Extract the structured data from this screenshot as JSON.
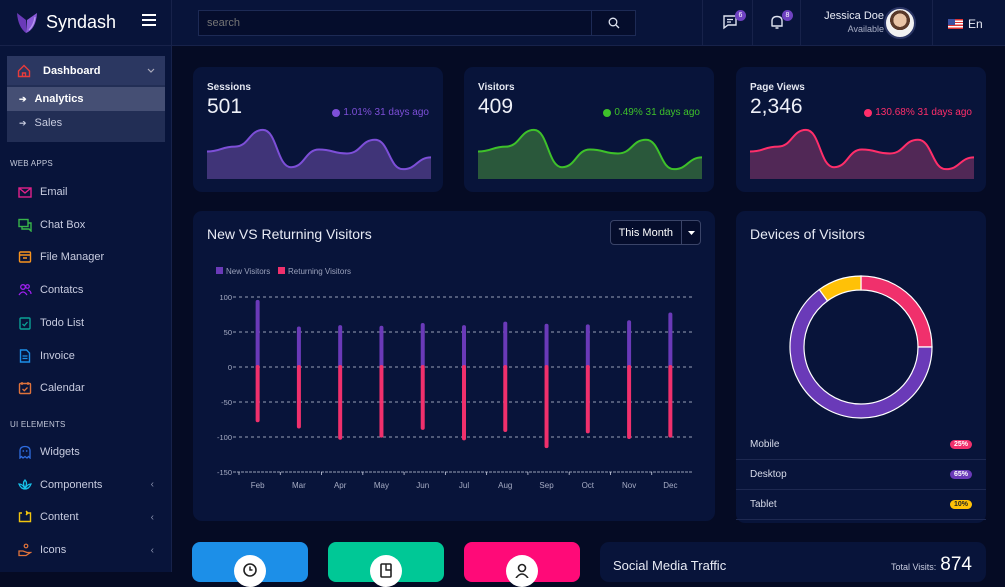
{
  "brand": {
    "name": "Syndash",
    "logo_icon": "leaf-logo"
  },
  "topbar": {
    "search_placeholder": "search",
    "messages_badge": "6",
    "notifications_badge": "8",
    "user_name": "Jessica Doe",
    "user_status": "Available",
    "language": "En"
  },
  "sidebar": {
    "dashboard": {
      "label": "Dashboard",
      "children": [
        {
          "label": "Analytics"
        },
        {
          "label": "Sales"
        }
      ]
    },
    "web_apps_label": "WEB APPS",
    "web_apps": [
      {
        "label": "Email",
        "icon": "mail-icon",
        "color": "#e0218a"
      },
      {
        "label": "Chat Box",
        "icon": "chat-icon",
        "color": "#38b54a"
      },
      {
        "label": "File Manager",
        "icon": "archive-icon",
        "color": "#f7931e"
      },
      {
        "label": "Contatcs",
        "icon": "users-icon",
        "color": "#a020f0"
      },
      {
        "label": "Todo List",
        "icon": "checklist-icon",
        "color": "#0aa195"
      },
      {
        "label": "Invoice",
        "icon": "document-icon",
        "color": "#1c8fe8"
      },
      {
        "label": "Calendar",
        "icon": "calendar-icon",
        "color": "#e0733b"
      }
    ],
    "ui_elements_label": "UI ELEMENTS",
    "ui_elements": [
      {
        "label": "Widgets",
        "icon": "ghost-icon",
        "color": "#2f6de0"
      },
      {
        "label": "Components",
        "icon": "lotus-icon",
        "color": "#17c0e8"
      },
      {
        "label": "Content",
        "icon": "repeat-icon",
        "color": "#f1c40f"
      },
      {
        "label": "Icons",
        "icon": "hand-icon",
        "color": "#e0733b"
      }
    ]
  },
  "stats": [
    {
      "title": "Sessions",
      "value": "501",
      "change": "1.01% 31 days ago",
      "color": "#7d4fd8",
      "fill": "#47377f"
    },
    {
      "title": "Visitors",
      "value": "409",
      "change": "0.49% 31 days ago",
      "color": "#3ec12a",
      "fill": "#2f5f3c"
    },
    {
      "title": "Page Views",
      "value": "2,346",
      "change": "130.68% 31 days ago",
      "color": "#ff2e6a",
      "fill": "#5a2a5a"
    }
  ],
  "sparkline_values": [
    28,
    33,
    50,
    12,
    30,
    26,
    40,
    10,
    22
  ],
  "visitors_chart": {
    "title": "New VS Returning Visitors",
    "range_label": "This Month"
  },
  "chart_data": {
    "type": "bar",
    "title": "New VS Returning Visitors",
    "categories": [
      "Feb",
      "Mar",
      "Apr",
      "May",
      "Jun",
      "Jul",
      "Aug",
      "Sep",
      "Oct",
      "Nov",
      "Dec"
    ],
    "series": [
      {
        "name": "New Visitors",
        "color": "#6a3ab8",
        "values": [
          93,
          55,
          57,
          56,
          60,
          57,
          62,
          59,
          58,
          64,
          75
        ]
      },
      {
        "name": "Returning Visitors",
        "color": "#f0306c",
        "values": [
          -76,
          -85,
          -101,
          -98,
          -87,
          -102,
          -90,
          -113,
          -92,
          -100,
          -98
        ]
      }
    ],
    "yticks": [
      100,
      50,
      0,
      -50,
      -100,
      -150
    ],
    "ylim": [
      -150,
      100
    ],
    "grid": true,
    "legend": "top-left"
  },
  "devices": {
    "title": "Devices of Visitors",
    "items": [
      {
        "label": "Mobile",
        "percent": "25%",
        "value": 25,
        "color": "#f0306c"
      },
      {
        "label": "Desktop",
        "percent": "65%",
        "value": 65,
        "color": "#6a3ab8"
      },
      {
        "label": "Tablet",
        "percent": "10%",
        "value": 10,
        "color": "#ffc107"
      }
    ]
  },
  "tiles": [
    {
      "color": "#1c8fe8",
      "icon": "clock-icon"
    },
    {
      "color": "#00c896",
      "icon": "tablet-icon"
    },
    {
      "color": "#ff0a78",
      "icon": "user-icon"
    }
  ],
  "social": {
    "title": "Social Media Traffic",
    "total_label": "Total Visits:",
    "total_value": "874"
  }
}
